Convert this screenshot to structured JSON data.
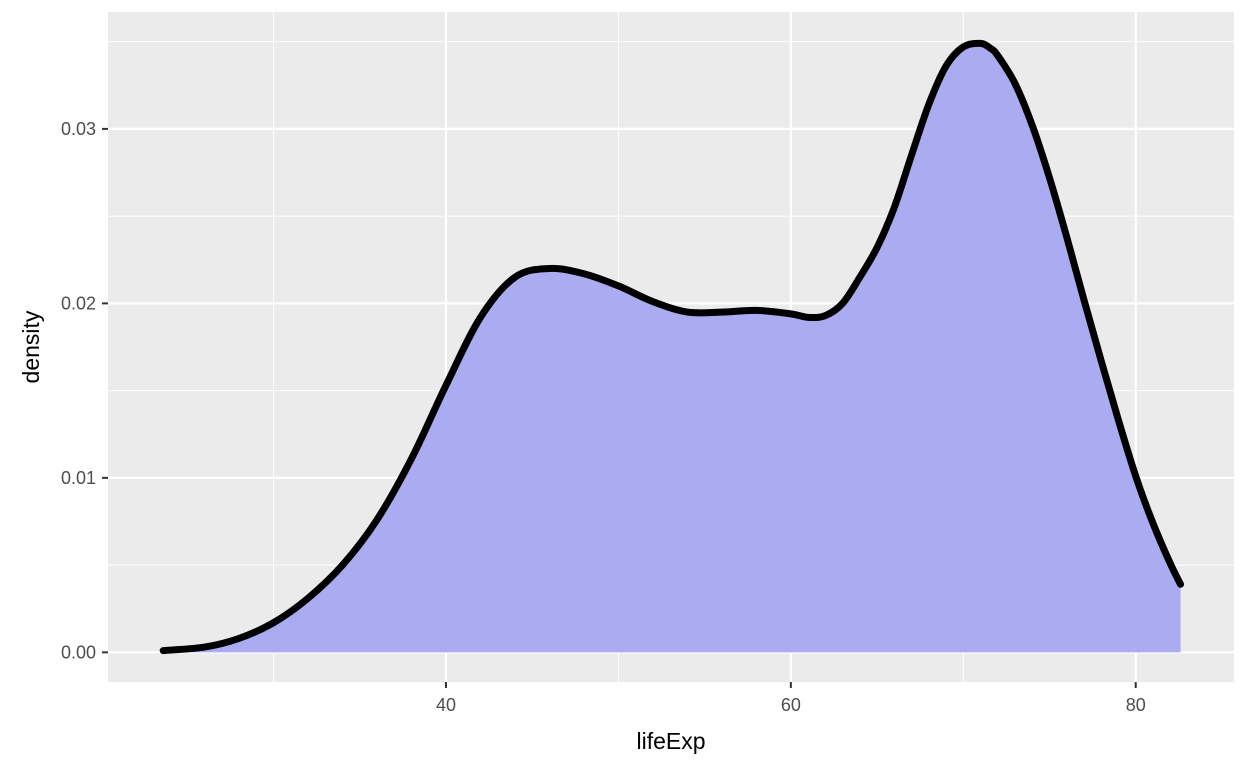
{
  "chart_data": {
    "type": "area",
    "title": "",
    "xlabel": "lifeExp",
    "ylabel": "density",
    "xlim": [
      20.4,
      85.7
    ],
    "ylim": [
      -0.0017,
      0.0367
    ],
    "x_ticks": [
      40,
      60,
      80
    ],
    "x_tick_labels": [
      "40",
      "60",
      "80"
    ],
    "x_minor_ticks": [
      30,
      50,
      70
    ],
    "y_ticks": [
      0.0,
      0.01,
      0.02,
      0.03
    ],
    "y_tick_labels": [
      "0.00",
      "0.01",
      "0.02",
      "0.03"
    ],
    "y_minor_ticks": [
      0.005,
      0.015,
      0.025,
      0.035
    ],
    "grid": true,
    "colors": {
      "panel_background": "#ebebeb",
      "grid": "#ffffff",
      "fill": "#a5a5f2",
      "line": "#000000"
    },
    "series": [
      {
        "x": [
          23.6,
          26,
          28,
          30,
          32,
          34,
          36,
          38,
          40,
          42,
          44,
          46,
          48,
          50,
          52,
          54,
          56,
          58,
          60,
          61,
          62,
          63,
          64,
          65,
          66,
          67,
          68,
          69,
          70,
          71,
          71.6,
          72,
          73,
          74,
          75,
          76,
          77,
          78,
          79,
          80,
          81,
          82,
          82.6
        ],
        "y": [
          0.0001,
          0.0003,
          0.0008,
          0.0017,
          0.0031,
          0.005,
          0.0076,
          0.0111,
          0.0153,
          0.0192,
          0.0215,
          0.022,
          0.0217,
          0.021,
          0.0201,
          0.0195,
          0.0195,
          0.0196,
          0.0194,
          0.0192,
          0.0193,
          0.02,
          0.0215,
          0.0232,
          0.0255,
          0.0285,
          0.0314,
          0.0336,
          0.0347,
          0.0349,
          0.0346,
          0.0342,
          0.0326,
          0.0302,
          0.0272,
          0.0238,
          0.0202,
          0.0167,
          0.0133,
          0.0101,
          0.0074,
          0.0051,
          0.0039
        ]
      }
    ]
  }
}
